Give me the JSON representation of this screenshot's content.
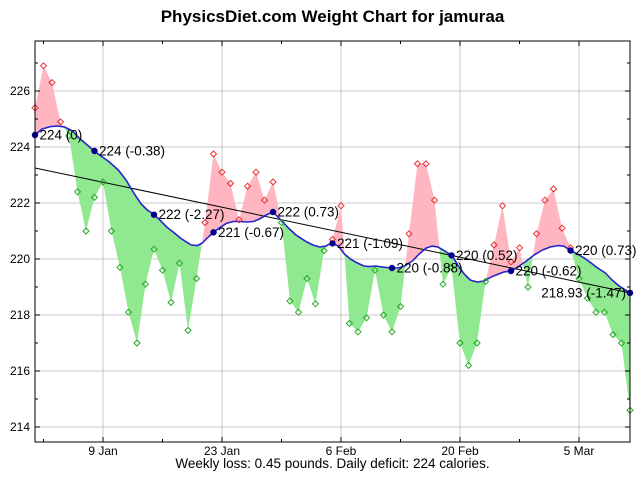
{
  "header": {
    "title": "PhysicsDiet.com Weight Chart for jamuraa"
  },
  "footer": {
    "caption": "Weekly loss: 0.45 pounds. Daily deficit: 224 calories."
  },
  "chart_data": {
    "type": "area",
    "title": "PhysicsDiet.com Weight Chart for jamuraa",
    "xlabel": "",
    "ylabel": "",
    "x_axis": {
      "day_range": [
        0,
        70
      ],
      "major_ticks": [
        {
          "label": "9 Jan",
          "day": 8
        },
        {
          "label": "23 Jan",
          "day": 22
        },
        {
          "label": "6 Feb",
          "day": 36
        },
        {
          "label": "20 Feb",
          "day": 50
        },
        {
          "label": "5 Mar",
          "day": 64
        }
      ],
      "minor_tick_days": [
        1,
        15,
        29,
        43,
        57
      ]
    },
    "y_axis": {
      "major_ticks": [
        226,
        224,
        222,
        220,
        218,
        216,
        214
      ],
      "minor_ticks": [
        227,
        225,
        223,
        221,
        219,
        217,
        215
      ],
      "range": [
        213.46,
        227.79
      ],
      "grid": true
    },
    "daily_weights": [
      225.4,
      226.9,
      226.3,
      224.9,
      224.4,
      222.4,
      221.0,
      222.2,
      222.75,
      221.0,
      219.7,
      218.1,
      217.0,
      219.1,
      220.35,
      219.6,
      218.45,
      219.85,
      217.45,
      219.3,
      221.3,
      223.75,
      223.1,
      222.7,
      221.4,
      222.6,
      223.1,
      222.1,
      222.75,
      221.3,
      218.5,
      218.1,
      219.3,
      218.4,
      220.3,
      220.7,
      221.9,
      217.7,
      217.4,
      217.9,
      219.6,
      218.0,
      217.4,
      218.3,
      220.9,
      223.4,
      223.4,
      222.1,
      219.1,
      219.7,
      217.0,
      216.2,
      217.0,
      219.2,
      220.5,
      221.9,
      219.9,
      220.4,
      219.0,
      220.9,
      222.1,
      222.5,
      221.1,
      220.4,
      219.3,
      218.6,
      218.1,
      218.1,
      217.3,
      217.0,
      214.6
    ],
    "smoothed_curve": [
      [
        0,
        224.43
      ],
      [
        0.8,
        224.64
      ],
      [
        1.8,
        224.73
      ],
      [
        2.7,
        224.75
      ],
      [
        3.5,
        224.71
      ],
      [
        4.4,
        224.57
      ],
      [
        5.3,
        224.29
      ],
      [
        6.0,
        224.11
      ],
      [
        6.7,
        223.93
      ],
      [
        7.6,
        223.71
      ],
      [
        8.6,
        223.5
      ],
      [
        9.8,
        223.18
      ],
      [
        10.7,
        222.82
      ],
      [
        11.7,
        222.32
      ],
      [
        12.5,
        221.96
      ],
      [
        13.2,
        221.75
      ],
      [
        13.9,
        221.61
      ],
      [
        14.7,
        221.39
      ],
      [
        15.5,
        221.14
      ],
      [
        16.4,
        220.93
      ],
      [
        17.1,
        220.75
      ],
      [
        17.8,
        220.61
      ],
      [
        18.4,
        220.5
      ],
      [
        19.1,
        220.48
      ],
      [
        19.7,
        220.57
      ],
      [
        20.2,
        220.73
      ],
      [
        20.9,
        220.93
      ],
      [
        21.7,
        221.11
      ],
      [
        22.5,
        221.27
      ],
      [
        23.3,
        221.34
      ],
      [
        24.1,
        221.34
      ],
      [
        24.9,
        221.32
      ],
      [
        25.7,
        221.34
      ],
      [
        26.4,
        221.43
      ],
      [
        27.2,
        221.57
      ],
      [
        28.0,
        221.68
      ],
      [
        28.8,
        221.43
      ],
      [
        29.8,
        221.11
      ],
      [
        30.7,
        220.86
      ],
      [
        31.8,
        220.64
      ],
      [
        32.7,
        220.5
      ],
      [
        33.5,
        220.43
      ],
      [
        34.2,
        220.46
      ],
      [
        34.9,
        220.57
      ],
      [
        35.7,
        220.46
      ],
      [
        36.4,
        220.18
      ],
      [
        37.1,
        220.0
      ],
      [
        37.9,
        219.86
      ],
      [
        38.7,
        219.75
      ],
      [
        39.4,
        219.73
      ],
      [
        40.1,
        219.75
      ],
      [
        40.9,
        219.71
      ],
      [
        41.9,
        219.68
      ],
      [
        42.7,
        219.68
      ],
      [
        43.5,
        219.75
      ],
      [
        44.4,
        219.93
      ],
      [
        45.2,
        220.18
      ],
      [
        46.0,
        220.39
      ],
      [
        46.7,
        220.46
      ],
      [
        47.4,
        220.43
      ],
      [
        48.2,
        220.29
      ],
      [
        49.1,
        220.11
      ],
      [
        49.8,
        219.75
      ],
      [
        50.5,
        219.46
      ],
      [
        51.2,
        219.25
      ],
      [
        52.0,
        219.18
      ],
      [
        52.8,
        219.21
      ],
      [
        53.7,
        219.36
      ],
      [
        54.5,
        219.46
      ],
      [
        55.2,
        219.54
      ],
      [
        56.0,
        219.57
      ],
      [
        56.8,
        219.71
      ],
      [
        57.8,
        219.93
      ],
      [
        58.7,
        220.14
      ],
      [
        59.7,
        220.32
      ],
      [
        60.6,
        220.43
      ],
      [
        61.5,
        220.48
      ],
      [
        62.2,
        220.46
      ],
      [
        62.9,
        220.32
      ],
      [
        63.8,
        220.18
      ],
      [
        64.6,
        220.04
      ],
      [
        65.4,
        219.86
      ],
      [
        66.2,
        219.68
      ],
      [
        67.1,
        219.5
      ],
      [
        67.9,
        219.25
      ],
      [
        68.7,
        219.04
      ],
      [
        70,
        218.79
      ]
    ],
    "trend_line": {
      "start_weight": 223.25,
      "end_weight": 218.79
    },
    "weekly_points": [
      {
        "day": 0,
        "text": "224 (0)"
      },
      {
        "day": 7,
        "text": "224 (-0.38)"
      },
      {
        "day": 14,
        "text": "222 (-2.27)"
      },
      {
        "day": 21,
        "text": "221 (-0.67)"
      },
      {
        "day": 28,
        "text": "222 (0.73)"
      },
      {
        "day": 35,
        "text": "221 (-1.09)"
      },
      {
        "day": 42,
        "text": "220 (-0.88)"
      },
      {
        "day": 49,
        "text": "220 (0.52)"
      },
      {
        "day": 56,
        "text": "220 (-0.62)"
      },
      {
        "day": 63,
        "text": "220 (0.73)"
      },
      {
        "day": 70,
        "text": "218.93 (-1.47)",
        "label_side": "left"
      }
    ],
    "colors": {
      "above_fill": "#ffb6c1",
      "below_fill": "#90e890",
      "above_marker": "#e83030",
      "below_marker": "#28a828",
      "smoothed_line": "#2424cf",
      "weekly_dot": "#00008b",
      "trend_line": "#000000",
      "grid_line": "#c8c8c8",
      "axis": "#000000",
      "text": "#000000"
    }
  }
}
